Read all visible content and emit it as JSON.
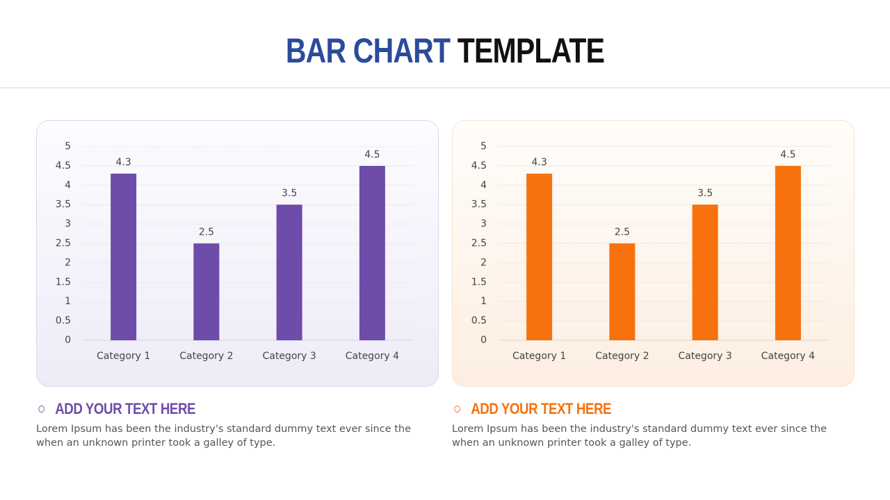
{
  "header": {
    "title": [
      "BAR CHART",
      "TEMPLATE"
    ]
  },
  "chart_data": [
    {
      "type": "bar",
      "categories": [
        "Category 1",
        "Category 2",
        "Category 3",
        "Category 4"
      ],
      "values": [
        4.3,
        2.5,
        3.5,
        4.5
      ],
      "color": "#6e4ca9",
      "ylim": [
        0,
        5
      ],
      "yticks": [
        0,
        0.5,
        1,
        1.5,
        2,
        2.5,
        3,
        3.5,
        4,
        4.5,
        5
      ],
      "grid": true,
      "data_labels": true
    },
    {
      "type": "bar",
      "categories": [
        "Category 1",
        "Category 2",
        "Category 3",
        "Category 4"
      ],
      "values": [
        4.3,
        2.5,
        3.5,
        4.5
      ],
      "color": "#f7710e",
      "ylim": [
        0,
        5
      ],
      "yticks": [
        0,
        0.5,
        1,
        1.5,
        2,
        2.5,
        3,
        3.5,
        4,
        4.5,
        5
      ],
      "grid": true,
      "data_labels": true
    }
  ],
  "captions": [
    {
      "heading": "ADD YOUR TEXT HERE",
      "text": "Lorem Ipsum has been the industry's standard dummy text ever since the when an unknown printer took a galley of type."
    },
    {
      "heading": "ADD YOUR TEXT HERE",
      "text": "Lorem Ipsum has been the industry's standard dummy text ever since the when an unknown printer took a galley of type."
    }
  ]
}
